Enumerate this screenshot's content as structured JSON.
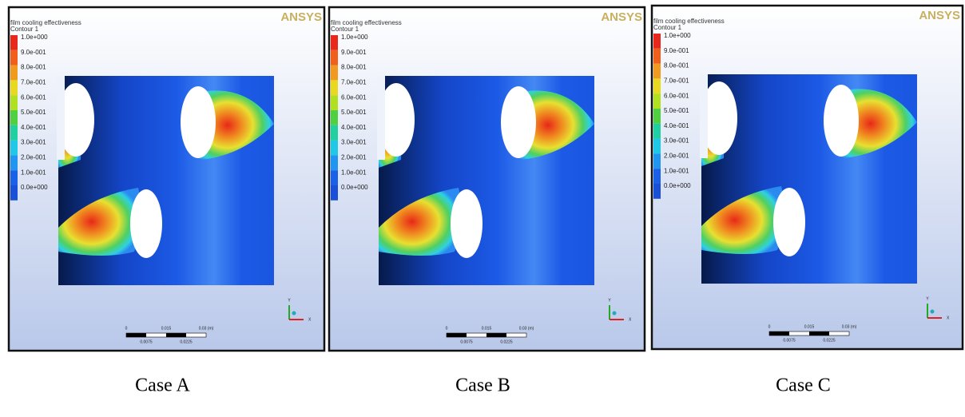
{
  "panels": [
    {
      "title": "film cooling effectiveness",
      "subtitle": "Contour 1",
      "legend_labels": [
        "1.0e+000",
        "9.0e-001",
        "8.0e-001",
        "7.0e-001",
        "6.0e-001",
        "5.0e-001",
        "4.0e-001",
        "3.0e-001",
        "2.0e-001",
        "1.0e-001",
        "0.0e+000"
      ],
      "logo": "ANSYS",
      "scale_labels_top": [
        "0",
        "0.015",
        "0.03 (m)"
      ],
      "scale_labels_bottom": [
        "0.0075",
        "0.0225"
      ],
      "axis_labels": [
        "Y",
        "X"
      ],
      "caption": "Case A"
    },
    {
      "title": "film cooling effectiveness",
      "subtitle": "Contour 1",
      "legend_labels": [
        "1.0e+000",
        "9.0e-001",
        "8.0e-001",
        "7.0e-001",
        "6.0e-001",
        "5.0e-001",
        "4.0e-001",
        "3.0e-001",
        "2.0e-001",
        "1.0e-001",
        "0.0e+000"
      ],
      "logo": "ANSYS",
      "scale_labels_top": [
        "0",
        "0.015",
        "0.03 (m)"
      ],
      "scale_labels_bottom": [
        "0.0075",
        "0.0225"
      ],
      "axis_labels": [
        "Y",
        "X"
      ],
      "caption": "Case B"
    },
    {
      "title": "film cooling effectiveness",
      "subtitle": "Contour 1",
      "legend_labels": [
        "1.0e+000",
        "9.0e-001",
        "8.0e-001",
        "7.0e-001",
        "6.0e-001",
        "5.0e-001",
        "4.0e-001",
        "3.0e-001",
        "2.0e-001",
        "1.0e-001",
        "0.0e+000"
      ],
      "logo": "ANSYS",
      "scale_labels_top": [
        "0",
        "0.015",
        "0.03 (m)"
      ],
      "scale_labels_bottom": [
        "0.0075",
        "0.0225"
      ],
      "axis_labels": [
        "Y",
        "X"
      ],
      "caption": "Case C"
    }
  ]
}
